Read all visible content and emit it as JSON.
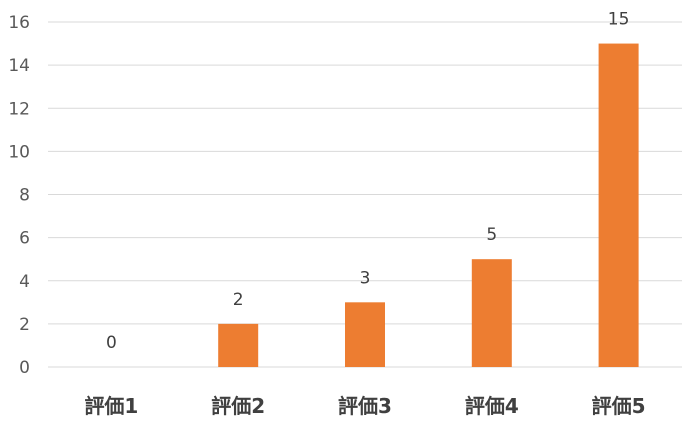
{
  "chart_data": {
    "type": "bar",
    "categories": [
      "評価1",
      "評価2",
      "評価3",
      "評価4",
      "評価5"
    ],
    "values": [
      0,
      2,
      3,
      5,
      15
    ],
    "data_labels": [
      "0",
      "2",
      "3",
      "5",
      "15"
    ],
    "yticks": [
      0,
      2,
      4,
      6,
      8,
      10,
      12,
      14,
      16
    ],
    "ylim": [
      0,
      16
    ],
    "grid": true,
    "legend": "none",
    "bar_color": "#ED7D31",
    "grid_color": "#D9D9D9",
    "text_color": "#595959"
  }
}
